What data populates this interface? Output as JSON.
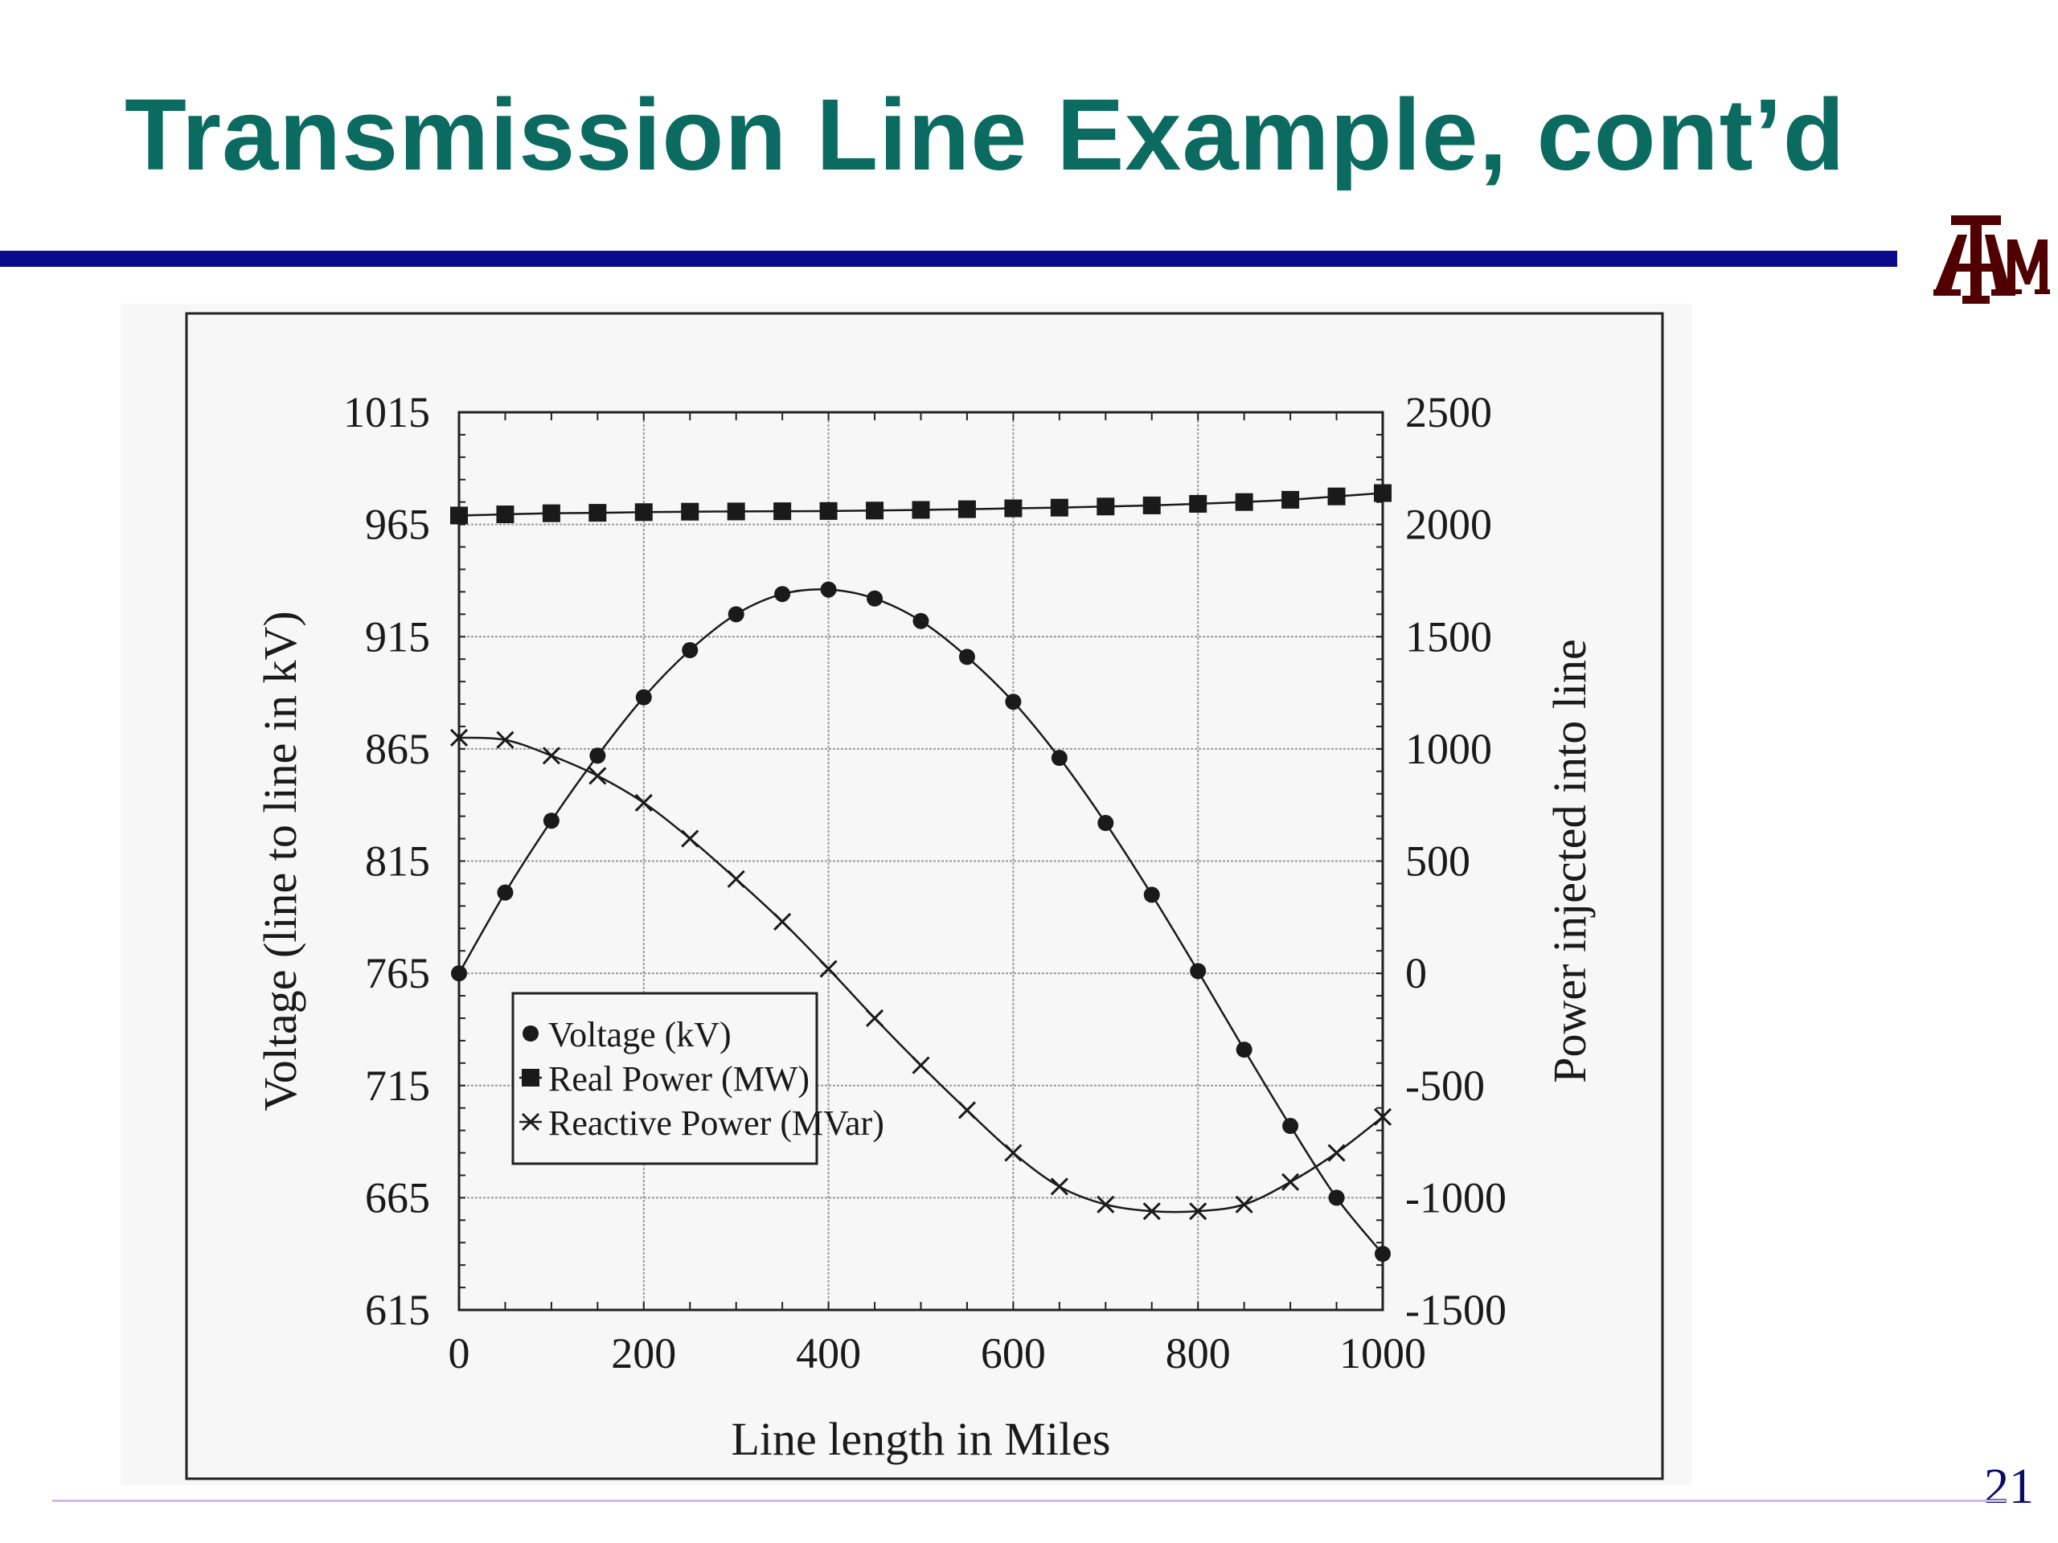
{
  "slide": {
    "title": "Transmission Line Example, cont’d",
    "page_number": "21",
    "logo_text": "ATM",
    "colors": {
      "title": "#0b6b61",
      "rule": "#0a0a8a",
      "logo": "#500000",
      "page_number": "#0a0a6a"
    }
  },
  "chart_data": {
    "type": "line",
    "xlabel": "Line length in Miles",
    "ylabel_left": "Voltage (line to line in kV)",
    "ylabel_right": "Power injected into line",
    "xlim": [
      0,
      1000
    ],
    "ylim_left": [
      615,
      1015
    ],
    "ylim_right": [
      -1500,
      2500
    ],
    "x_ticks": [
      "0",
      "200",
      "400",
      "600",
      "800",
      "1000"
    ],
    "y_left_ticks": [
      "615",
      "665",
      "715",
      "765",
      "815",
      "865",
      "915",
      "965",
      "1015"
    ],
    "y_right_ticks": [
      "-1500",
      "-1000",
      "-500",
      "0",
      "500",
      "1000",
      "1500",
      "2000",
      "2500"
    ],
    "grid": true,
    "legend_position": "bottom-left",
    "x": [
      0,
      50,
      100,
      150,
      200,
      250,
      300,
      350,
      400,
      450,
      500,
      550,
      600,
      650,
      700,
      750,
      800,
      850,
      900,
      950,
      1000
    ],
    "series": [
      {
        "name": "Voltage (kV)",
        "axis": "left",
        "marker": "circle",
        "values": [
          765,
          801,
          833,
          862,
          888,
          909,
          925,
          934,
          936,
          932,
          922,
          906,
          886,
          861,
          832,
          800,
          766,
          731,
          697,
          665,
          640
        ]
      },
      {
        "name": "Real Power (MW)",
        "axis": "right",
        "marker": "square",
        "values": [
          2040,
          2045,
          2050,
          2052,
          2055,
          2057,
          2058,
          2059,
          2060,
          2062,
          2065,
          2068,
          2072,
          2075,
          2080,
          2085,
          2092,
          2100,
          2110,
          2125,
          2140
        ]
      },
      {
        "name": "Reactive Power (MVar)",
        "axis": "right",
        "marker": "x",
        "values": [
          1050,
          1040,
          970,
          880,
          760,
          600,
          420,
          230,
          20,
          -200,
          -410,
          -610,
          -800,
          -950,
          -1030,
          -1060,
          -1060,
          -1030,
          -930,
          -800,
          -640
        ]
      }
    ]
  }
}
